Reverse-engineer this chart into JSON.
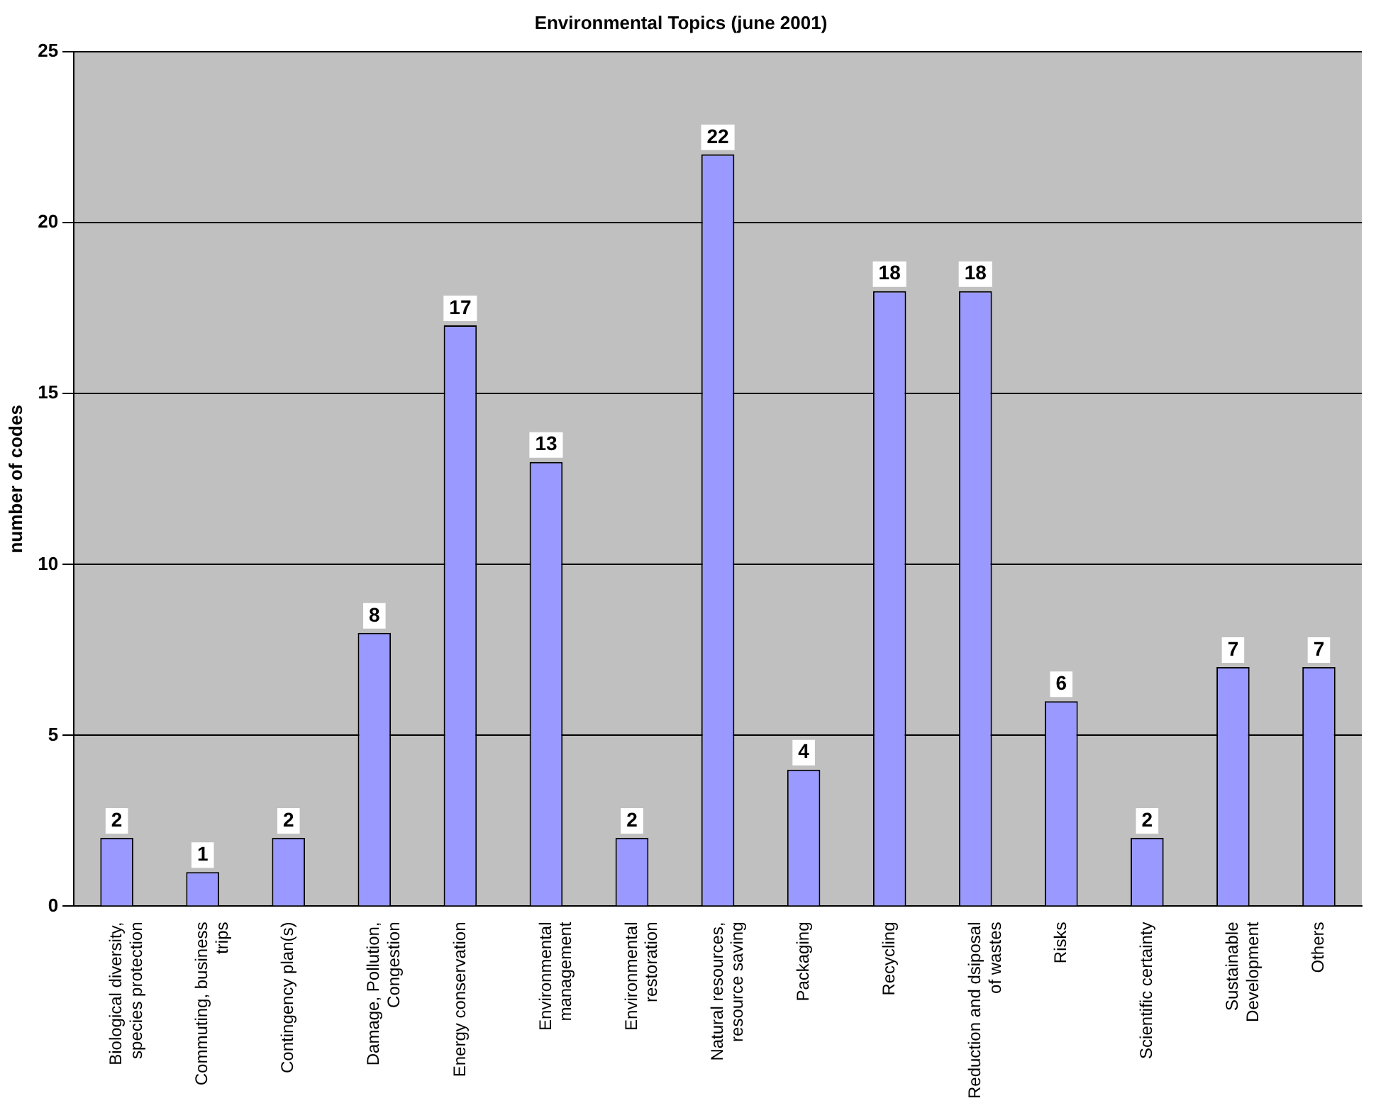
{
  "chart_data": {
    "type": "bar",
    "title": "Environmental Topics (june 2001)",
    "ylabel": "number of codes",
    "categories": [
      "Biological diversity, species protection",
      "Commuting, business trips",
      "Contingency plan(s)",
      "Damage, Pollution, Congestion",
      "Energy conservation",
      "Environmental management",
      "Environmental restoration",
      "Natural resources, resource saving",
      "Packaging",
      "Recycling",
      "Reduction and dsiposal of wastes",
      "Risks",
      "Scientific certainty",
      "Sustainable Development",
      "Others"
    ],
    "values": [
      2,
      1,
      2,
      8,
      17,
      13,
      2,
      22,
      4,
      18,
      18,
      6,
      2,
      7,
      7
    ],
    "color": "#9999ff",
    "ylim": [
      0,
      25
    ],
    "yticks": [
      0,
      5,
      10,
      15,
      20,
      25
    ],
    "grid": "y",
    "data_labels": true
  }
}
